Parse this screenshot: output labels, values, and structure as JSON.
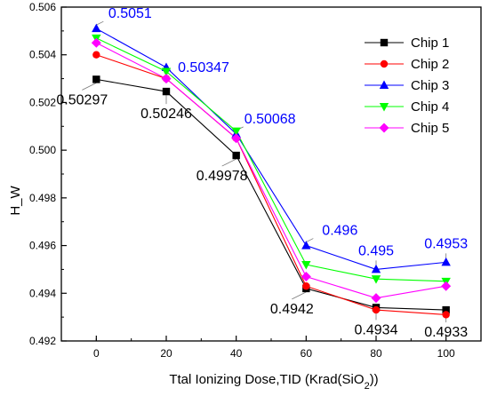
{
  "chart_data": {
    "type": "line",
    "title": "",
    "xlabel": "Ttal Ionizing Dose,TID (Krad(SiO",
    "xlabel_subscript": "2",
    "xlabel_suffix": "))",
    "ylabel": "H_W",
    "x": [
      0,
      20,
      40,
      60,
      80,
      100
    ],
    "xlim": [
      -10,
      110
    ],
    "ylim": [
      0.492,
      0.506
    ],
    "x_ticks": [
      "0",
      "20",
      "40",
      "60",
      "80",
      "100"
    ],
    "y_ticks": [
      "0.492",
      "0.494",
      "0.496",
      "0.498",
      "0.500",
      "0.502",
      "0.504",
      "0.506"
    ],
    "grid": false,
    "legend_position": "top-right",
    "series": [
      {
        "name": "Chip 1",
        "color": "#000000",
        "marker": "square",
        "values": [
          0.50297,
          0.50246,
          0.49978,
          0.4942,
          0.4934,
          0.4933
        ]
      },
      {
        "name": "Chip 2",
        "color": "#ff0000",
        "marker": "circle",
        "values": [
          0.504,
          0.503,
          0.5005,
          0.4943,
          0.4933,
          0.4931
        ]
      },
      {
        "name": "Chip 3",
        "color": "#0000ff",
        "marker": "triangle-up",
        "values": [
          0.5051,
          0.50347,
          0.50068,
          0.496,
          0.495,
          0.4953
        ]
      },
      {
        "name": "Chip 4",
        "color": "#00ff00",
        "marker": "triangle-down",
        "values": [
          0.5047,
          0.5033,
          0.5008,
          0.4952,
          0.4946,
          0.4945
        ]
      },
      {
        "name": "Chip 5",
        "color": "#ff00ff",
        "marker": "diamond",
        "values": [
          0.5045,
          0.503,
          0.5005,
          0.4947,
          0.4938,
          0.4943
        ]
      }
    ],
    "annotations": [
      {
        "text": "0.50297",
        "x": 0,
        "y": 0.50297,
        "color": "#000000",
        "placement": "below-left"
      },
      {
        "text": "0.50246",
        "x": 20,
        "y": 0.50246,
        "color": "#000000",
        "placement": "below"
      },
      {
        "text": "0.49978",
        "x": 40,
        "y": 0.49978,
        "color": "#000000",
        "placement": "below-left"
      },
      {
        "text": "0.4942",
        "x": 60,
        "y": 0.4942,
        "color": "#000000",
        "placement": "below-left"
      },
      {
        "text": "0.4934",
        "x": 80,
        "y": 0.4934,
        "color": "#000000",
        "placement": "below"
      },
      {
        "text": "0.4933",
        "x": 100,
        "y": 0.4933,
        "color": "#000000",
        "placement": "below"
      },
      {
        "text": "0.5051",
        "x": 0,
        "y": 0.5051,
        "color": "#0000ff",
        "placement": "above-right"
      },
      {
        "text": "0.50347",
        "x": 20,
        "y": 0.50347,
        "color": "#0000ff",
        "placement": "right"
      },
      {
        "text": "0.50068",
        "x": 40,
        "y": 0.50068,
        "color": "#0000ff",
        "placement": "above-right"
      },
      {
        "text": "0.496",
        "x": 60,
        "y": 0.496,
        "color": "#0000ff",
        "placement": "above-right"
      },
      {
        "text": "0.495",
        "x": 80,
        "y": 0.495,
        "color": "#0000ff",
        "placement": "above"
      },
      {
        "text": "0.4953",
        "x": 100,
        "y": 0.4953,
        "color": "#0000ff",
        "placement": "above"
      }
    ]
  }
}
